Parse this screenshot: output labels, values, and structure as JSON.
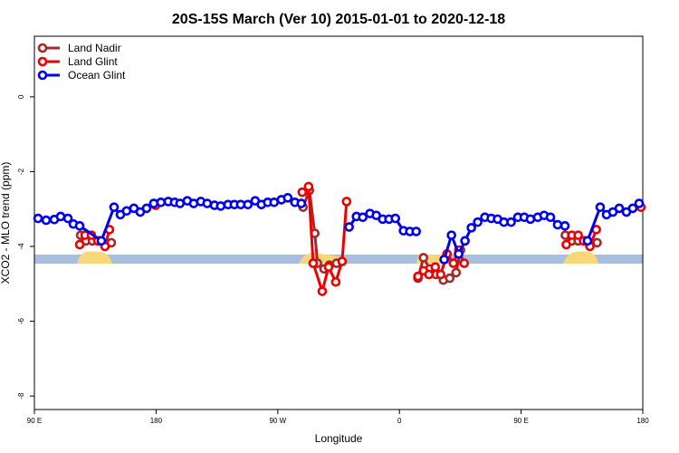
{
  "chart_data": {
    "type": "line",
    "title": "20S-15S March (Ver 10)   2015-01-01 to 2020-12-18",
    "x_label": "Longitude",
    "y_label": "XCO2 - MLO trend (ppm)",
    "xlim": [
      90,
      540
    ],
    "ylim": [
      -8.36,
      1.62
    ],
    "xticks": [
      {
        "value": 90,
        "label": "90 E"
      },
      180,
      {
        "value": 270,
        "label": "90 W"
      },
      {
        "value": 360,
        "label": "0"
      },
      {
        "value": 450,
        "label": "90 E"
      },
      {
        "value": 540,
        "label": "180"
      }
    ],
    "yticks": [
      0,
      -2,
      -4,
      -6,
      -8
    ],
    "legend": "top-left",
    "series": [
      {
        "name": "Land Nadir",
        "color": "#a52a2a",
        "x": [
          124.2,
          128.2,
          132.9,
          137.6,
          142.9,
          146.9,
          null,
          178.3,
          null,
          288.7,
          293.4,
          297.4,
          299.4,
          304.2,
          308.2,
          313.5,
          null,
          373.7,
          377.8,
          382.4,
          387.1,
          392.5,
          397.2,
          401.9,
          405.2,
          null,
          482.7,
          487.5,
          492.2,
          496.9,
          501.5,
          506.2
        ],
        "values": [
          -3.7,
          -3.85,
          -3.85,
          -3.85,
          -3.95,
          -3.9,
          null,
          -2.85,
          null,
          -2.95,
          -2.5,
          -3.65,
          -4.45,
          -4.6,
          -4.5,
          -4.45,
          null,
          -4.85,
          -4.3,
          -4.6,
          -4.75,
          -4.9,
          -4.85,
          -4.7,
          -4.1,
          null,
          -3.7,
          -3.85,
          -3.85,
          -3.85,
          -3.95,
          -3.9
        ]
      },
      {
        "name": "Land Glint",
        "color": "#ee0000",
        "x": [
          123.5,
          127.5,
          132.2,
          136.9,
          142.2,
          145.5,
          null,
          179.7,
          null,
          288.1,
          292.8,
          296.2,
          302.9,
          307.6,
          312.9,
          317.6,
          320.9,
          null,
          373.7,
          377.8,
          381.8,
          386.5,
          390.5,
          395.2,
          399.9,
          403.9,
          407.9,
          null,
          483.4,
          487.5,
          492.2,
          496.2,
          500.9,
          505.6,
          null,
          538.6
        ],
        "values": [
          -3.95,
          -3.7,
          -3.7,
          -3.85,
          -4.0,
          -3.55,
          null,
          -2.9,
          null,
          -2.55,
          -2.4,
          -4.45,
          -5.2,
          -4.55,
          -4.95,
          -4.4,
          -2.8,
          null,
          -4.8,
          -4.65,
          -4.75,
          -4.55,
          -4.75,
          -4.2,
          -4.45,
          -4.1,
          -4.45,
          null,
          -3.95,
          -3.7,
          -3.7,
          -3.85,
          -4.0,
          -3.55,
          null,
          -2.95
        ]
      },
      {
        "name": "Ocean Glint",
        "color": "#0000ee",
        "x": [
          92.7,
          98.7,
          104.7,
          109.4,
          114.8,
          118.8,
          123.5,
          139.5,
          148.9,
          153.6,
          158.2,
          163.6,
          168.3,
          173.0,
          178.3,
          183.6,
          189.0,
          193.7,
          197.7,
          203.1,
          207.8,
          213.1,
          217.8,
          223.2,
          227.8,
          233.2,
          237.9,
          242.6,
          247.9,
          253.3,
          257.9,
          262.6,
          267.3,
          272.7,
          277.4,
          282.7,
          287.4,
          null,
          322.8,
          328.2,
          332.9,
          338.2,
          342.9,
          347.6,
          352.3,
          357.0,
          363.0,
          367.7,
          372.4,
          null,
          393.1,
          398.5,
          403.8,
          408.5,
          413.2,
          417.9,
          423.2,
          427.9,
          432.6,
          437.3,
          442.6,
          447.6,
          452.3,
          456.9,
          462.3,
          467.0,
          471.7,
          477.0,
          482.4,
          null,
          499.1,
          508.5,
          513.2,
          517.9,
          522.6,
          527.9,
          532.6,
          537.3
        ],
        "values": [
          -3.25,
          -3.3,
          -3.28,
          -3.2,
          -3.25,
          -3.4,
          -3.45,
          -3.85,
          -2.95,
          -3.15,
          -3.05,
          -2.98,
          -3.08,
          -2.98,
          -2.85,
          -2.82,
          -2.8,
          -2.82,
          -2.85,
          -2.78,
          -2.85,
          -2.8,
          -2.85,
          -2.9,
          -2.92,
          -2.88,
          -2.88,
          -2.88,
          -2.88,
          -2.78,
          -2.88,
          -2.82,
          -2.82,
          -2.75,
          -2.7,
          -2.82,
          -2.85,
          null,
          -3.48,
          -3.2,
          -3.22,
          -3.12,
          -3.17,
          -3.27,
          -3.27,
          -3.25,
          -3.58,
          -3.6,
          -3.6,
          null,
          -4.35,
          -3.7,
          -4.2,
          -3.85,
          -3.5,
          -3.35,
          -3.22,
          -3.25,
          -3.27,
          -3.35,
          -3.35,
          -3.22,
          -3.22,
          -3.27,
          -3.22,
          -3.17,
          -3.22,
          -3.42,
          -3.45,
          null,
          -3.85,
          -2.95,
          -3.15,
          -3.08,
          -2.98,
          -3.08,
          -2.98,
          -2.85
        ]
      }
    ]
  }
}
